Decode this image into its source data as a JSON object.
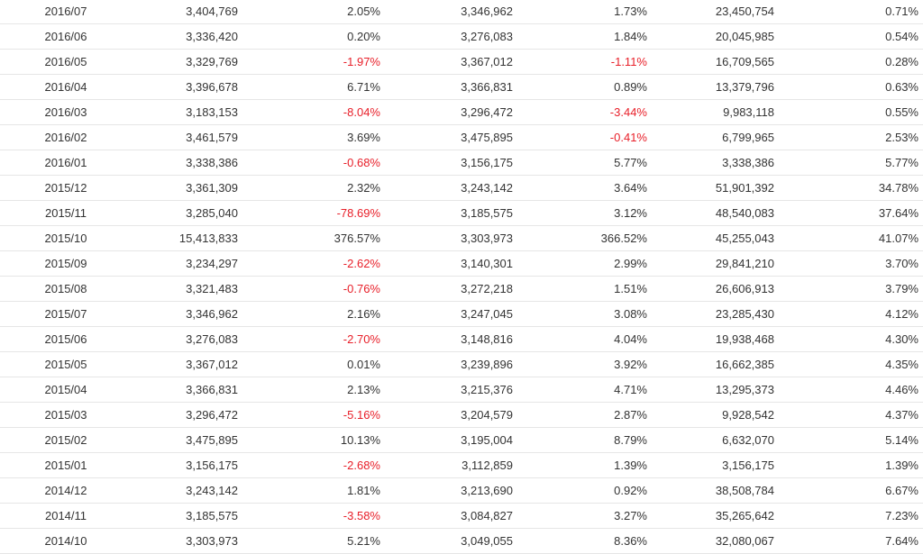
{
  "table": {
    "rows": [
      {
        "month": "2016/07",
        "v1": "3,404,769",
        "p1": "2.05%",
        "v2": "3,346,962",
        "p2": "1.73%",
        "v3": "23,450,754",
        "p3": "0.71%"
      },
      {
        "month": "2016/06",
        "v1": "3,336,420",
        "p1": "0.20%",
        "v2": "3,276,083",
        "p2": "1.84%",
        "v3": "20,045,985",
        "p3": "0.54%"
      },
      {
        "month": "2016/05",
        "v1": "3,329,769",
        "p1": "-1.97%",
        "v2": "3,367,012",
        "p2": "-1.11%",
        "v3": "16,709,565",
        "p3": "0.28%"
      },
      {
        "month": "2016/04",
        "v1": "3,396,678",
        "p1": "6.71%",
        "v2": "3,366,831",
        "p2": "0.89%",
        "v3": "13,379,796",
        "p3": "0.63%"
      },
      {
        "month": "2016/03",
        "v1": "3,183,153",
        "p1": "-8.04%",
        "v2": "3,296,472",
        "p2": "-3.44%",
        "v3": "9,983,118",
        "p3": "0.55%"
      },
      {
        "month": "2016/02",
        "v1": "3,461,579",
        "p1": "3.69%",
        "v2": "3,475,895",
        "p2": "-0.41%",
        "v3": "6,799,965",
        "p3": "2.53%"
      },
      {
        "month": "2016/01",
        "v1": "3,338,386",
        "p1": "-0.68%",
        "v2": "3,156,175",
        "p2": "5.77%",
        "v3": "3,338,386",
        "p3": "5.77%"
      },
      {
        "month": "2015/12",
        "v1": "3,361,309",
        "p1": "2.32%",
        "v2": "3,243,142",
        "p2": "3.64%",
        "v3": "51,901,392",
        "p3": "34.78%"
      },
      {
        "month": "2015/11",
        "v1": "3,285,040",
        "p1": "-78.69%",
        "v2": "3,185,575",
        "p2": "3.12%",
        "v3": "48,540,083",
        "p3": "37.64%"
      },
      {
        "month": "2015/10",
        "v1": "15,413,833",
        "p1": "376.57%",
        "v2": "3,303,973",
        "p2": "366.52%",
        "v3": "45,255,043",
        "p3": "41.07%"
      },
      {
        "month": "2015/09",
        "v1": "3,234,297",
        "p1": "-2.62%",
        "v2": "3,140,301",
        "p2": "2.99%",
        "v3": "29,841,210",
        "p3": "3.70%"
      },
      {
        "month": "2015/08",
        "v1": "3,321,483",
        "p1": "-0.76%",
        "v2": "3,272,218",
        "p2": "1.51%",
        "v3": "26,606,913",
        "p3": "3.79%"
      },
      {
        "month": "2015/07",
        "v1": "3,346,962",
        "p1": "2.16%",
        "v2": "3,247,045",
        "p2": "3.08%",
        "v3": "23,285,430",
        "p3": "4.12%"
      },
      {
        "month": "2015/06",
        "v1": "3,276,083",
        "p1": "-2.70%",
        "v2": "3,148,816",
        "p2": "4.04%",
        "v3": "19,938,468",
        "p3": "4.30%"
      },
      {
        "month": "2015/05",
        "v1": "3,367,012",
        "p1": "0.01%",
        "v2": "3,239,896",
        "p2": "3.92%",
        "v3": "16,662,385",
        "p3": "4.35%"
      },
      {
        "month": "2015/04",
        "v1": "3,366,831",
        "p1": "2.13%",
        "v2": "3,215,376",
        "p2": "4.71%",
        "v3": "13,295,373",
        "p3": "4.46%"
      },
      {
        "month": "2015/03",
        "v1": "3,296,472",
        "p1": "-5.16%",
        "v2": "3,204,579",
        "p2": "2.87%",
        "v3": "9,928,542",
        "p3": "4.37%"
      },
      {
        "month": "2015/02",
        "v1": "3,475,895",
        "p1": "10.13%",
        "v2": "3,195,004",
        "p2": "8.79%",
        "v3": "6,632,070",
        "p3": "5.14%"
      },
      {
        "month": "2015/01",
        "v1": "3,156,175",
        "p1": "-2.68%",
        "v2": "3,112,859",
        "p2": "1.39%",
        "v3": "3,156,175",
        "p3": "1.39%"
      },
      {
        "month": "2014/12",
        "v1": "3,243,142",
        "p1": "1.81%",
        "v2": "3,213,690",
        "p2": "0.92%",
        "v3": "38,508,784",
        "p3": "6.67%"
      },
      {
        "month": "2014/11",
        "v1": "3,185,575",
        "p1": "-3.58%",
        "v2": "3,084,827",
        "p2": "3.27%",
        "v3": "35,265,642",
        "p3": "7.23%"
      },
      {
        "month": "2014/10",
        "v1": "3,303,973",
        "p1": "5.21%",
        "v2": "3,049,055",
        "p2": "8.36%",
        "v3": "32,080,067",
        "p3": "7.64%"
      }
    ]
  },
  "colors": {
    "negative": "#e8202a",
    "text": "#333333",
    "row_divider": "#e6e6e6"
  }
}
